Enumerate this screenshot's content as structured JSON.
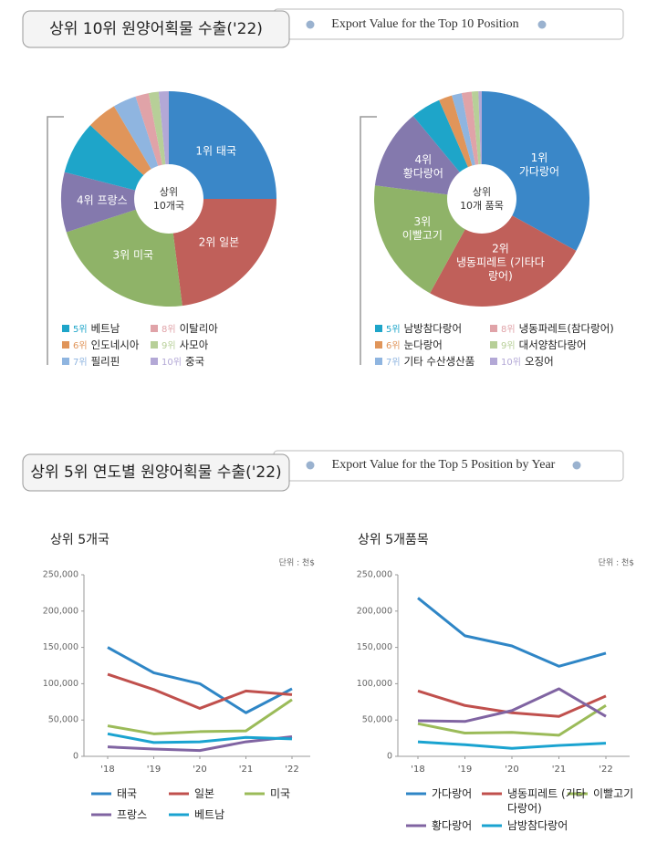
{
  "sections": [
    {
      "title": "상위 10위 원양어획물 수출('22)",
      "subtitle": "Export Value for  the Top 10 Position"
    },
    {
      "title": "상위 5위 연도별 원양어획물 수출('22)",
      "subtitle": "Export Value for the Top 5 Position by Year"
    }
  ],
  "chart_data": [
    {
      "type": "pie",
      "center_label": [
        "상위",
        "10개국"
      ],
      "ranks": [
        "1위",
        "2위",
        "3위",
        "4위",
        "5위",
        "6위",
        "7위",
        "8위",
        "9위",
        "10위"
      ],
      "categories": [
        "태국",
        "일본",
        "미국",
        "프랑스",
        "베트남",
        "인도네시아",
        "필리핀",
        "이탈리아",
        "사모아",
        "중국"
      ],
      "values": [
        25,
        23,
        22,
        9,
        8,
        4.5,
        3.5,
        2,
        1.5,
        1.5
      ],
      "colors": [
        "#3a87c8",
        "#c0605a",
        "#8fb368",
        "#8479ad",
        "#1ea5c9",
        "#e0955a",
        "#8fb5e0",
        "#e0a3a8",
        "#b7cf98",
        "#b3a8d6"
      ]
    },
    {
      "type": "pie",
      "center_label": [
        "상위",
        "10개 품목"
      ],
      "ranks": [
        "1위",
        "2위",
        "3위",
        "4위",
        "5위",
        "6위",
        "7위",
        "8위",
        "9위",
        "10위"
      ],
      "categories": [
        "가다랑어",
        "냉동피레트 (기타다랑어)",
        "이빨고기",
        "황다랑어",
        "남방참다랑어",
        "눈다랑어",
        "기타 수산생산품",
        "냉동파레트(참다랑어)",
        "대서양참다랑어",
        "오징어"
      ],
      "values": [
        33,
        25,
        19,
        12,
        4.5,
        2,
        1.5,
        1.5,
        1,
        0.5
      ],
      "colors": [
        "#3a87c8",
        "#c0605a",
        "#8fb368",
        "#8479ad",
        "#1ea5c9",
        "#e0955a",
        "#8fb5e0",
        "#e0a3a8",
        "#b7cf98",
        "#b3a8d6"
      ]
    },
    {
      "type": "line",
      "title": "상위 5개국",
      "unit": "단위 : 천$",
      "categories": [
        "'18",
        "'19",
        "'20",
        "'21",
        "'22"
      ],
      "ylim": [
        0,
        250000
      ],
      "yticks": [
        0,
        {
          "value": 50000,
          "label": "50,000"
        },
        {
          "value": 100000,
          "label": "100,000"
        },
        {
          "value": 150000,
          "label": "150,000"
        },
        {
          "value": 200000,
          "label": "200,000"
        },
        {
          "value": 250000,
          "label": "250,000"
        }
      ],
      "grid": false,
      "series": [
        {
          "name": "태국",
          "color": "#2f86c6",
          "values": [
            150000,
            115000,
            100000,
            60000,
            93000
          ]
        },
        {
          "name": "일본",
          "color": "#c0504d",
          "values": [
            113000,
            92000,
            66000,
            90000,
            85000
          ]
        },
        {
          "name": "미국",
          "color": "#9bbb59",
          "values": [
            42000,
            31000,
            34000,
            35000,
            78000
          ]
        },
        {
          "name": "프랑스",
          "color": "#8064a2",
          "values": [
            13000,
            10000,
            8000,
            20000,
            27000
          ]
        },
        {
          "name": "베트남",
          "color": "#1aa3d0",
          "values": [
            31000,
            19000,
            20000,
            26000,
            24000
          ]
        }
      ]
    },
    {
      "type": "line",
      "title": "상위 5개품목",
      "unit": "단위 : 천$",
      "categories": [
        "'18",
        "'19",
        "'20",
        "'21",
        "'22"
      ],
      "ylim": [
        0,
        250000
      ],
      "yticks": [
        0,
        {
          "value": 50000,
          "label": "50,000"
        },
        {
          "value": 100000,
          "label": "100,000"
        },
        {
          "value": 150000,
          "label": "150,000"
        },
        {
          "value": 200000,
          "label": "200,000"
        },
        {
          "value": 250000,
          "label": "250,000"
        }
      ],
      "grid": false,
      "series": [
        {
          "name": "가다랑어",
          "color": "#2f86c6",
          "values": [
            218000,
            166000,
            152000,
            124000,
            142000
          ]
        },
        {
          "name": "냉동피레트 (기타다랑어)",
          "color": "#c0504d",
          "values": [
            90000,
            70000,
            60000,
            55000,
            83000
          ]
        },
        {
          "name": "이빨고기",
          "color": "#9bbb59",
          "values": [
            45000,
            32000,
            33000,
            29000,
            70000
          ]
        },
        {
          "name": "황다랑어",
          "color": "#8064a2",
          "values": [
            49000,
            48000,
            63000,
            93000,
            55000
          ]
        },
        {
          "name": "남방참다랑어",
          "color": "#1aa3d0",
          "values": [
            20000,
            16000,
            11000,
            15000,
            18000
          ]
        }
      ]
    }
  ]
}
